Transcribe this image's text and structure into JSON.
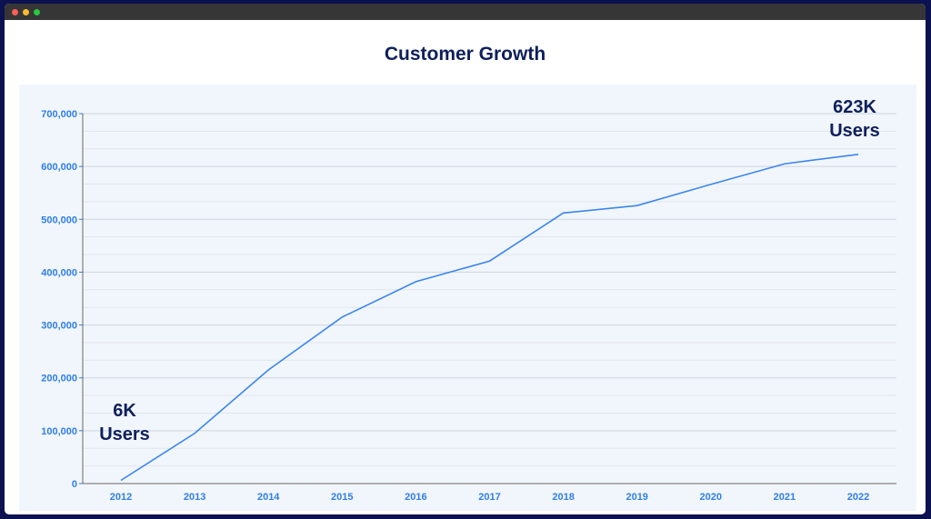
{
  "window": {
    "controls": [
      "close",
      "minimize",
      "maximize"
    ],
    "control_colors": [
      "#fe5f57",
      "#febc2e",
      "#28c840"
    ]
  },
  "chart_data": {
    "type": "line",
    "title": "Customer Growth",
    "x": [
      "2012",
      "2013",
      "2014",
      "2015",
      "2016",
      "2017",
      "2018",
      "2019",
      "2020",
      "2021",
      "2022"
    ],
    "series": [
      {
        "values": [
          6000,
          95000,
          215000,
          315000,
          382000,
          421000,
          512000,
          526000,
          566000,
          605000,
          623000
        ],
        "color": "#3b86ee"
      }
    ],
    "ylim": [
      0,
      700000
    ],
    "yticks": [
      "0",
      "100,000",
      "200,000",
      "300,000",
      "400,000",
      "500,000",
      "600,000",
      "700,000"
    ],
    "grid": true,
    "annotations": [
      {
        "line1": "6K",
        "line2": "Users",
        "at": "2012"
      },
      {
        "line1": "623K",
        "line2": "Users",
        "at": "2022"
      }
    ],
    "xlabel": "",
    "ylabel": ""
  }
}
